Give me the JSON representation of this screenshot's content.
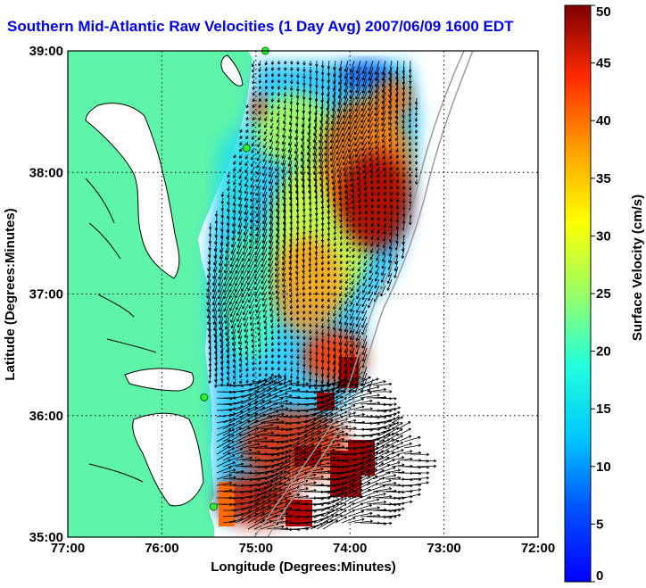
{
  "title": "Southern Mid-Atlantic Raw Velocities (1 Day Avg) 2007/06/09 1600 EDT",
  "map": {
    "xlabel": "Longitude (Degrees:Minutes)",
    "ylabel": "Latitude (Degrees:Minutes)",
    "x_ticks": [
      "77:00",
      "76:00",
      "75:00",
      "74:00",
      "73:00",
      "72:00"
    ],
    "y_ticks": [
      "39:00",
      "38:00",
      "37:00",
      "36:00",
      "35:00"
    ],
    "lon_range": [
      -77,
      -72
    ],
    "lat_range": [
      35,
      39
    ],
    "grid": true,
    "land_color": "#5ff5a8",
    "water_color": "#ffffff",
    "coastline_color": "#000000",
    "station_color": "#33ee33",
    "stations": [
      {
        "lon": -74.9,
        "lat": 39.0
      },
      {
        "lon": -75.1,
        "lat": 38.2
      },
      {
        "lon": -75.55,
        "lat": 36.15
      },
      {
        "lon": -75.45,
        "lat": 35.25
      }
    ]
  },
  "colorbar": {
    "label": "Surface Velocity (cm/s)",
    "ticks": [
      "0",
      "5",
      "10",
      "15",
      "20",
      "25",
      "30",
      "35",
      "40",
      "45",
      "50"
    ],
    "min": 0,
    "max": 50
  }
}
